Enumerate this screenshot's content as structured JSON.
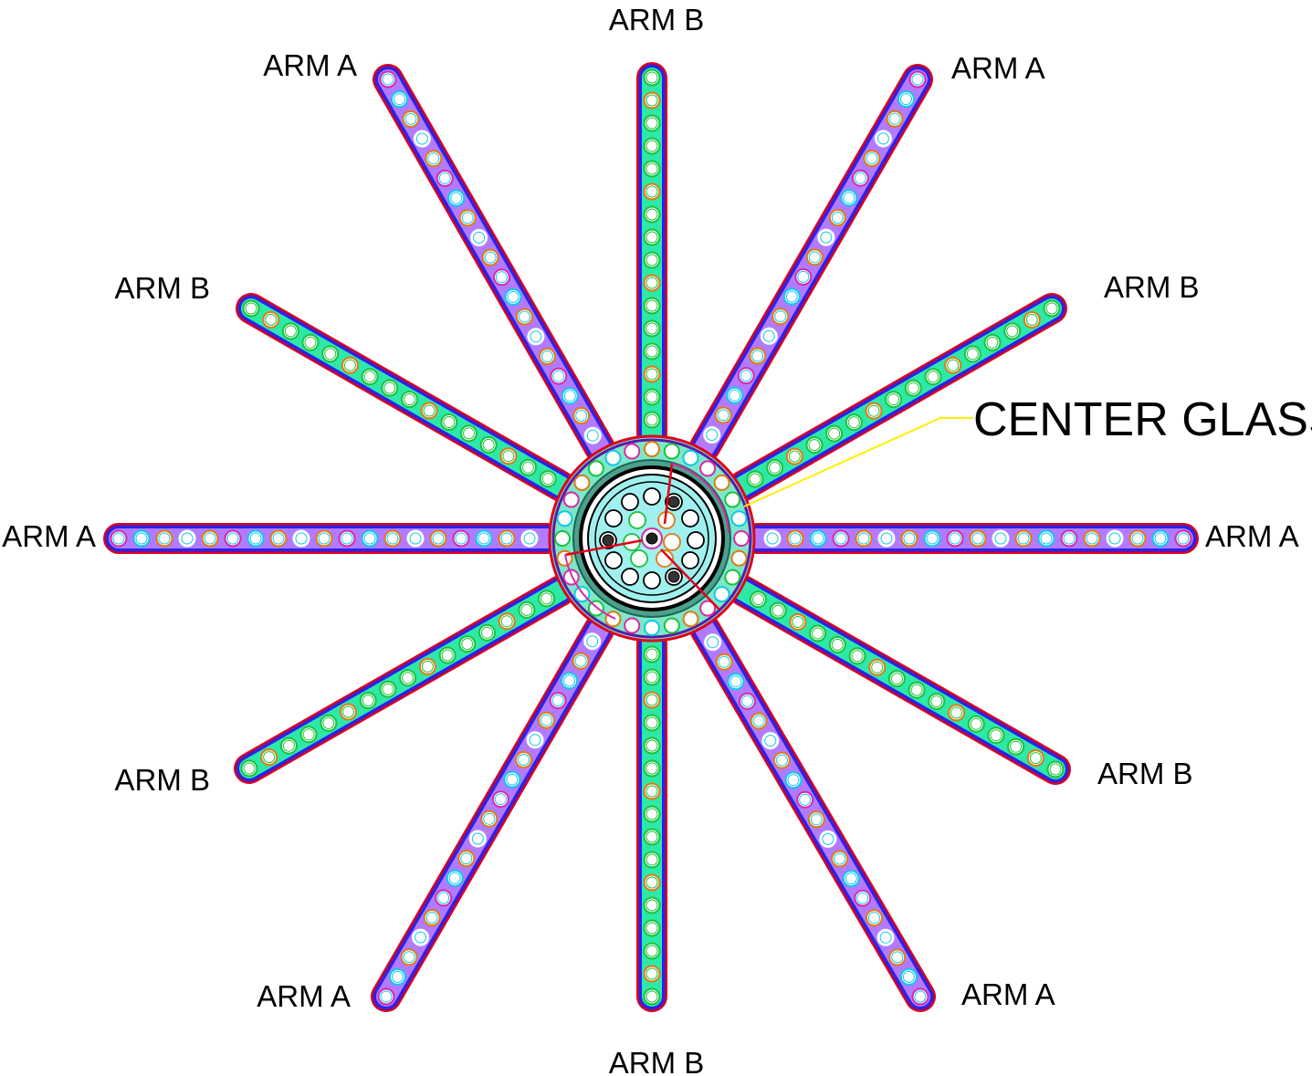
{
  "diagram": {
    "labels": {
      "top": "ARM B",
      "top_left": "ARM A",
      "top_right": "ARM A",
      "upper_left": "ARM B",
      "upper_right": "ARM B",
      "left": "ARM A",
      "right": "ARM A",
      "lower_left": "ARM B",
      "lower_right": "ARM B",
      "bottom_left": "ARM A",
      "bottom_right": "ARM A",
      "bottom": "ARM B"
    },
    "callout": "CENTER GLASS",
    "colors": {
      "outline": "#e0001b",
      "arm_a_fill": "#b27bff",
      "arm_b_fill": "#2ee8a8",
      "inner_border": "#2222ff",
      "ring_orange": "#e07a10",
      "ring_green": "#18c23a",
      "ring_cyan": "#10c8e8",
      "ring_magenta": "#d62aa8",
      "callout_line": "#ffee00",
      "center_fill": "#9ff0ee"
    }
  }
}
